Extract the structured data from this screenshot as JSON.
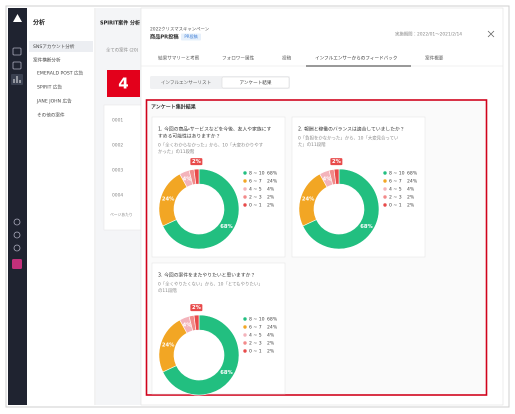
{
  "nav": {
    "title": "分析",
    "items": [
      "SNSアカウント分析",
      "案件横断分析",
      "EMERALD POST 広告",
      "SPIRIT 広告",
      "JANE JOHN 広告",
      "その他の案件"
    ]
  },
  "list": {
    "title": "SPIRIT案件 分析",
    "filter": "全ての案件 (20)",
    "rows": [
      "0001",
      "0002",
      "0003",
      "0004"
    ],
    "footer": "ページあたり"
  },
  "panel": {
    "campaign": "2022クリスマスキャンペーン",
    "name": "商品PR投稿",
    "badge": "PR投稿",
    "period": "実施期間：2022/01～2021/2/14",
    "tabs": [
      "結果サマリーと考察",
      "フォロワー属性",
      "投稿",
      "インフルエンサーからのフィードバック",
      "案件概要"
    ],
    "subtabs": [
      "インフルエンサーリスト",
      "アンケート結果"
    ]
  },
  "step": "4",
  "survey": {
    "title": "アンケート集計結果",
    "colors": [
      "#22bf80",
      "#f2a624",
      "#f3b3bb",
      "#f28a8a",
      "#e84a4a"
    ],
    "cards": [
      {
        "question": [
          "1. 今回の商品・サービスなどを今後、友人や家族にす",
          "すめる可能性はありますか？"
        ],
        "description": [
          "0「全くわからなかった」から、10「大変わかりやす",
          "かった」の11段階"
        ],
        "chart": {
          "type": "donut",
          "categories": [
            "8 ~ 10",
            "6 ~ 7",
            "4 ~ 5",
            "2 ~ 3",
            "0 ~ 1"
          ],
          "values": [
            68,
            24,
            4,
            2,
            2
          ],
          "value_labels": [
            "68%",
            "24%",
            "4%",
            "2%",
            "2%"
          ]
        }
      },
      {
        "question": [
          "2. 報酬と稼働のバランスは適合していましたか？"
        ],
        "description": [
          "0「負担をかなかった」から、10「大変見合ってい",
          "た」の11段階"
        ],
        "chart": {
          "type": "donut",
          "categories": [
            "8 ~ 10",
            "6 ~ 7",
            "4 ~ 5",
            "2 ~ 3",
            "0 ~ 1"
          ],
          "values": [
            68,
            24,
            4,
            2,
            2
          ],
          "value_labels": [
            "68%",
            "24%",
            "4%",
            "2%",
            "2%"
          ]
        }
      },
      {
        "question": [
          "3. 今回の案件をまたやりたいと思いますか？"
        ],
        "description": [
          "0「全くやりたくない」から、10「とてもやりたい」",
          "の11段階"
        ],
        "chart": {
          "type": "donut",
          "categories": [
            "8 ~ 10",
            "6 ~ 7",
            "4 ~ 5",
            "2 ~ 3",
            "0 ~ 1"
          ],
          "values": [
            68,
            24,
            4,
            2,
            2
          ],
          "value_labels": [
            "68%",
            "24%",
            "4%",
            "2%",
            "2%"
          ]
        }
      }
    ]
  }
}
